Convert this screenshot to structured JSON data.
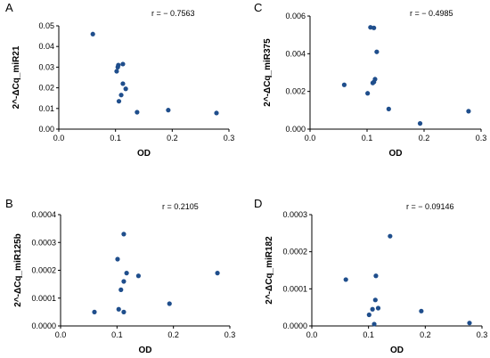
{
  "chart_data": [
    {
      "type": "scatter",
      "panel": "A",
      "annotation": "r = − 0.7563",
      "xlabel": "OD",
      "ylabel": "2^-ΔCq_miR21",
      "xlim": [
        0.0,
        0.3
      ],
      "ylim": [
        0.0,
        0.05
      ],
      "xticks": [
        "0.0",
        "0.1",
        "0.2",
        "0.3"
      ],
      "yticks": [
        "0.00",
        "0.01",
        "0.02",
        "0.03",
        "0.04",
        "0.05"
      ],
      "marker_color": "#1f4e8c",
      "points": [
        {
          "x": 0.06,
          "y": 0.046
        },
        {
          "x": 0.102,
          "y": 0.028
        },
        {
          "x": 0.104,
          "y": 0.03
        },
        {
          "x": 0.105,
          "y": 0.031
        },
        {
          "x": 0.113,
          "y": 0.0315
        },
        {
          "x": 0.113,
          "y": 0.022
        },
        {
          "x": 0.118,
          "y": 0.0195
        },
        {
          "x": 0.11,
          "y": 0.0165
        },
        {
          "x": 0.106,
          "y": 0.0135
        },
        {
          "x": 0.138,
          "y": 0.0082
        },
        {
          "x": 0.193,
          "y": 0.0092
        },
        {
          "x": 0.278,
          "y": 0.0078
        }
      ]
    },
    {
      "type": "scatter",
      "panel": "C",
      "annotation": "r = − 0.4985",
      "xlabel": "OD",
      "ylabel": "2^-ΔCq_miR375",
      "xlim": [
        0.0,
        0.3
      ],
      "ylim": [
        0.0,
        0.006
      ],
      "xticks": [
        "0.0",
        "0.1",
        "0.2",
        "0.3"
      ],
      "yticks": [
        "0.000",
        "0.002",
        "0.004",
        "0.006"
      ],
      "marker_color": "#1f4e8c",
      "points": [
        {
          "x": 0.06,
          "y": 0.00235
        },
        {
          "x": 0.101,
          "y": 0.0019
        },
        {
          "x": 0.106,
          "y": 0.0054
        },
        {
          "x": 0.112,
          "y": 0.00537
        },
        {
          "x": 0.117,
          "y": 0.0041
        },
        {
          "x": 0.112,
          "y": 0.0025
        },
        {
          "x": 0.114,
          "y": 0.00265
        },
        {
          "x": 0.11,
          "y": 0.00245
        },
        {
          "x": 0.138,
          "y": 0.00107
        },
        {
          "x": 0.193,
          "y": 0.0003
        },
        {
          "x": 0.278,
          "y": 0.00095
        }
      ]
    },
    {
      "type": "scatter",
      "panel": "B",
      "annotation": "r = 0.2105",
      "xlabel": "OD",
      "ylabel": "2^-ΔCq_miR125b",
      "xlim": [
        0.0,
        0.3
      ],
      "ylim": [
        0.0,
        0.0004
      ],
      "xticks": [
        "0.0",
        "0.1",
        "0.2",
        "0.3"
      ],
      "yticks": [
        "0.0000",
        "0.0001",
        "0.0002",
        "0.0003",
        "0.0004"
      ],
      "marker_color": "#1f4e8c",
      "points": [
        {
          "x": 0.06,
          "y": 5e-05
        },
        {
          "x": 0.101,
          "y": 0.00024
        },
        {
          "x": 0.112,
          "y": 0.00033
        },
        {
          "x": 0.117,
          "y": 0.00019
        },
        {
          "x": 0.112,
          "y": 0.00016
        },
        {
          "x": 0.107,
          "y": 0.00013
        },
        {
          "x": 0.103,
          "y": 6e-05
        },
        {
          "x": 0.112,
          "y": 5e-05
        },
        {
          "x": 0.138,
          "y": 0.00018
        },
        {
          "x": 0.193,
          "y": 8e-05
        },
        {
          "x": 0.278,
          "y": 0.00019
        }
      ]
    },
    {
      "type": "scatter",
      "panel": "D",
      "annotation": "r = − 0.09146",
      "xlabel": "OD",
      "ylabel": "2^-ΔCq_miR182",
      "xlim": [
        0.0,
        0.3
      ],
      "ylim": [
        0.0,
        0.0003
      ],
      "xticks": [
        "0.0",
        "0.1",
        "0.2",
        "0.3"
      ],
      "yticks": [
        "0.0000",
        "0.0001",
        "0.0002",
        "0.0003"
      ],
      "marker_color": "#1f4e8c",
      "points": [
        {
          "x": 0.06,
          "y": 0.000125
        },
        {
          "x": 0.101,
          "y": 3e-05
        },
        {
          "x": 0.107,
          "y": 4.5e-05
        },
        {
          "x": 0.112,
          "y": 7e-05
        },
        {
          "x": 0.113,
          "y": 0.000135
        },
        {
          "x": 0.117,
          "y": 4.8e-05
        },
        {
          "x": 0.11,
          "y": 5e-06
        },
        {
          "x": 0.138,
          "y": 0.000242
        },
        {
          "x": 0.193,
          "y": 4e-05
        },
        {
          "x": 0.278,
          "y": 8e-06
        }
      ]
    }
  ]
}
